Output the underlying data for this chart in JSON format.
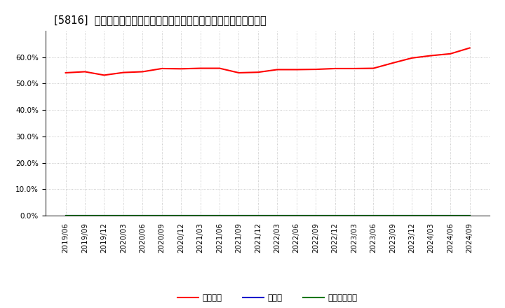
{
  "title": "[5816]  自己資本、のれん、繰延税金資産の総資産に対する比率の推移",
  "title_fontsize": 10.5,
  "background_color": "#ffffff",
  "plot_bg_color": "#ffffff",
  "grid_color": "#bbbbbb",
  "ylim": [
    0.0,
    0.7
  ],
  "yticks": [
    0.0,
    0.1,
    0.2,
    0.3,
    0.4,
    0.5,
    0.6
  ],
  "x_labels": [
    "2019/06",
    "2019/09",
    "2019/12",
    "2020/03",
    "2020/06",
    "2020/09",
    "2020/12",
    "2021/03",
    "2021/06",
    "2021/09",
    "2021/12",
    "2022/03",
    "2022/06",
    "2022/09",
    "2022/12",
    "2023/03",
    "2023/06",
    "2023/09",
    "2023/12",
    "2024/03",
    "2024/06",
    "2024/09"
  ],
  "equity_values": [
    0.541,
    0.545,
    0.532,
    0.542,
    0.545,
    0.557,
    0.556,
    0.558,
    0.558,
    0.541,
    0.543,
    0.553,
    0.553,
    0.554,
    0.557,
    0.557,
    0.558,
    0.578,
    0.597,
    0.606,
    0.613,
    0.635
  ],
  "noren_values": [
    0.0,
    0.0,
    0.0,
    0.0,
    0.0,
    0.0,
    0.0,
    0.0,
    0.0,
    0.0,
    0.0,
    0.0,
    0.0,
    0.0,
    0.0,
    0.0,
    0.0,
    0.0,
    0.0,
    0.0,
    0.0,
    0.0
  ],
  "deferred_tax_values": [
    0.0,
    0.0,
    0.0,
    0.0,
    0.0,
    0.0,
    0.0,
    0.0,
    0.0,
    0.0,
    0.0,
    0.0,
    0.0,
    0.0,
    0.0,
    0.0,
    0.0,
    0.0,
    0.0,
    0.0,
    0.0,
    0.0
  ],
  "equity_color": "#ff0000",
  "noren_color": "#0000cc",
  "deferred_tax_color": "#007700",
  "equity_label": "自己資本",
  "noren_label": "のれん",
  "deferred_tax_label": "繰延税金資産",
  "legend_fontsize": 8.5,
  "tick_fontsize": 7.5,
  "line_width": 1.5
}
